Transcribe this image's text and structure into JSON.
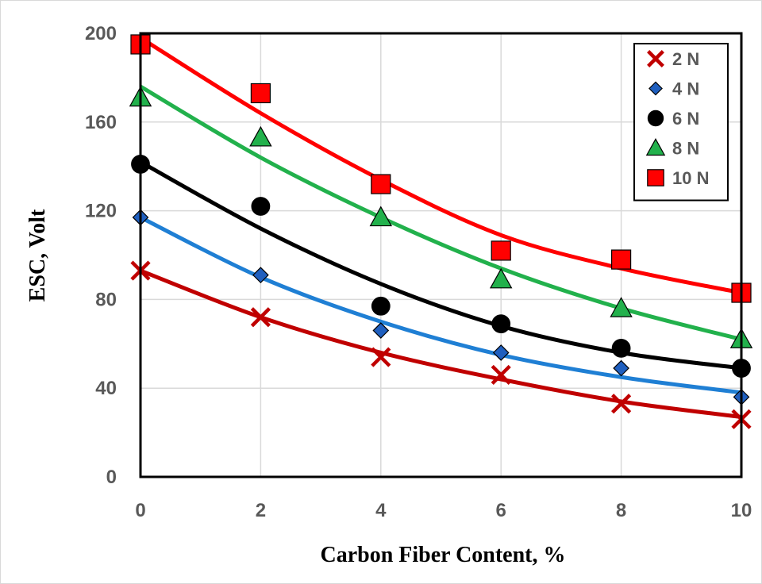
{
  "chart_data": {
    "type": "scatter",
    "title": "",
    "xlabel": "Carbon Fiber Content, %",
    "ylabel": "ESC, Volt",
    "xlim": [
      0,
      10
    ],
    "ylim": [
      0,
      200
    ],
    "x_ticks": [
      "0",
      "2",
      "4",
      "6",
      "8",
      "10"
    ],
    "y_ticks": [
      "0",
      "40",
      "80",
      "120",
      "160",
      "200"
    ],
    "grid": true,
    "legend_position": "top-right",
    "x": [
      0,
      2,
      4,
      6,
      8,
      10
    ],
    "series": [
      {
        "name": "2 N",
        "marker": "x",
        "color": "#c00000",
        "line_color": "#c00000",
        "values": [
          93,
          72,
          54,
          46,
          33,
          26
        ],
        "fit": [
          93,
          72,
          56,
          44,
          34,
          27
        ]
      },
      {
        "name": "4 N",
        "marker": "diamond",
        "color": "#1f5fbf",
        "line_color": "#1f7fd4",
        "values": [
          117,
          91,
          66,
          56,
          49,
          36
        ],
        "fit": [
          117,
          90,
          70,
          55,
          45,
          38
        ]
      },
      {
        "name": "6 N",
        "marker": "circle",
        "color": "#000000",
        "line_color": "#000000",
        "values": [
          141,
          122,
          77,
          69,
          58,
          49
        ],
        "fit": [
          142,
          112,
          87,
          68,
          56,
          49
        ]
      },
      {
        "name": "8 N",
        "marker": "triangle",
        "color": "#22b14c",
        "line_color": "#22b14c",
        "values": [
          171,
          153,
          117,
          89,
          76,
          62
        ],
        "fit": [
          176,
          144,
          117,
          94,
          76,
          62
        ]
      },
      {
        "name": "10 N",
        "marker": "square",
        "color": "#ff0000",
        "line_color": "#ff0000",
        "values": [
          195,
          173,
          132,
          102,
          98,
          83
        ],
        "fit": [
          198,
          164,
          134,
          109,
          94,
          83
        ]
      }
    ]
  }
}
